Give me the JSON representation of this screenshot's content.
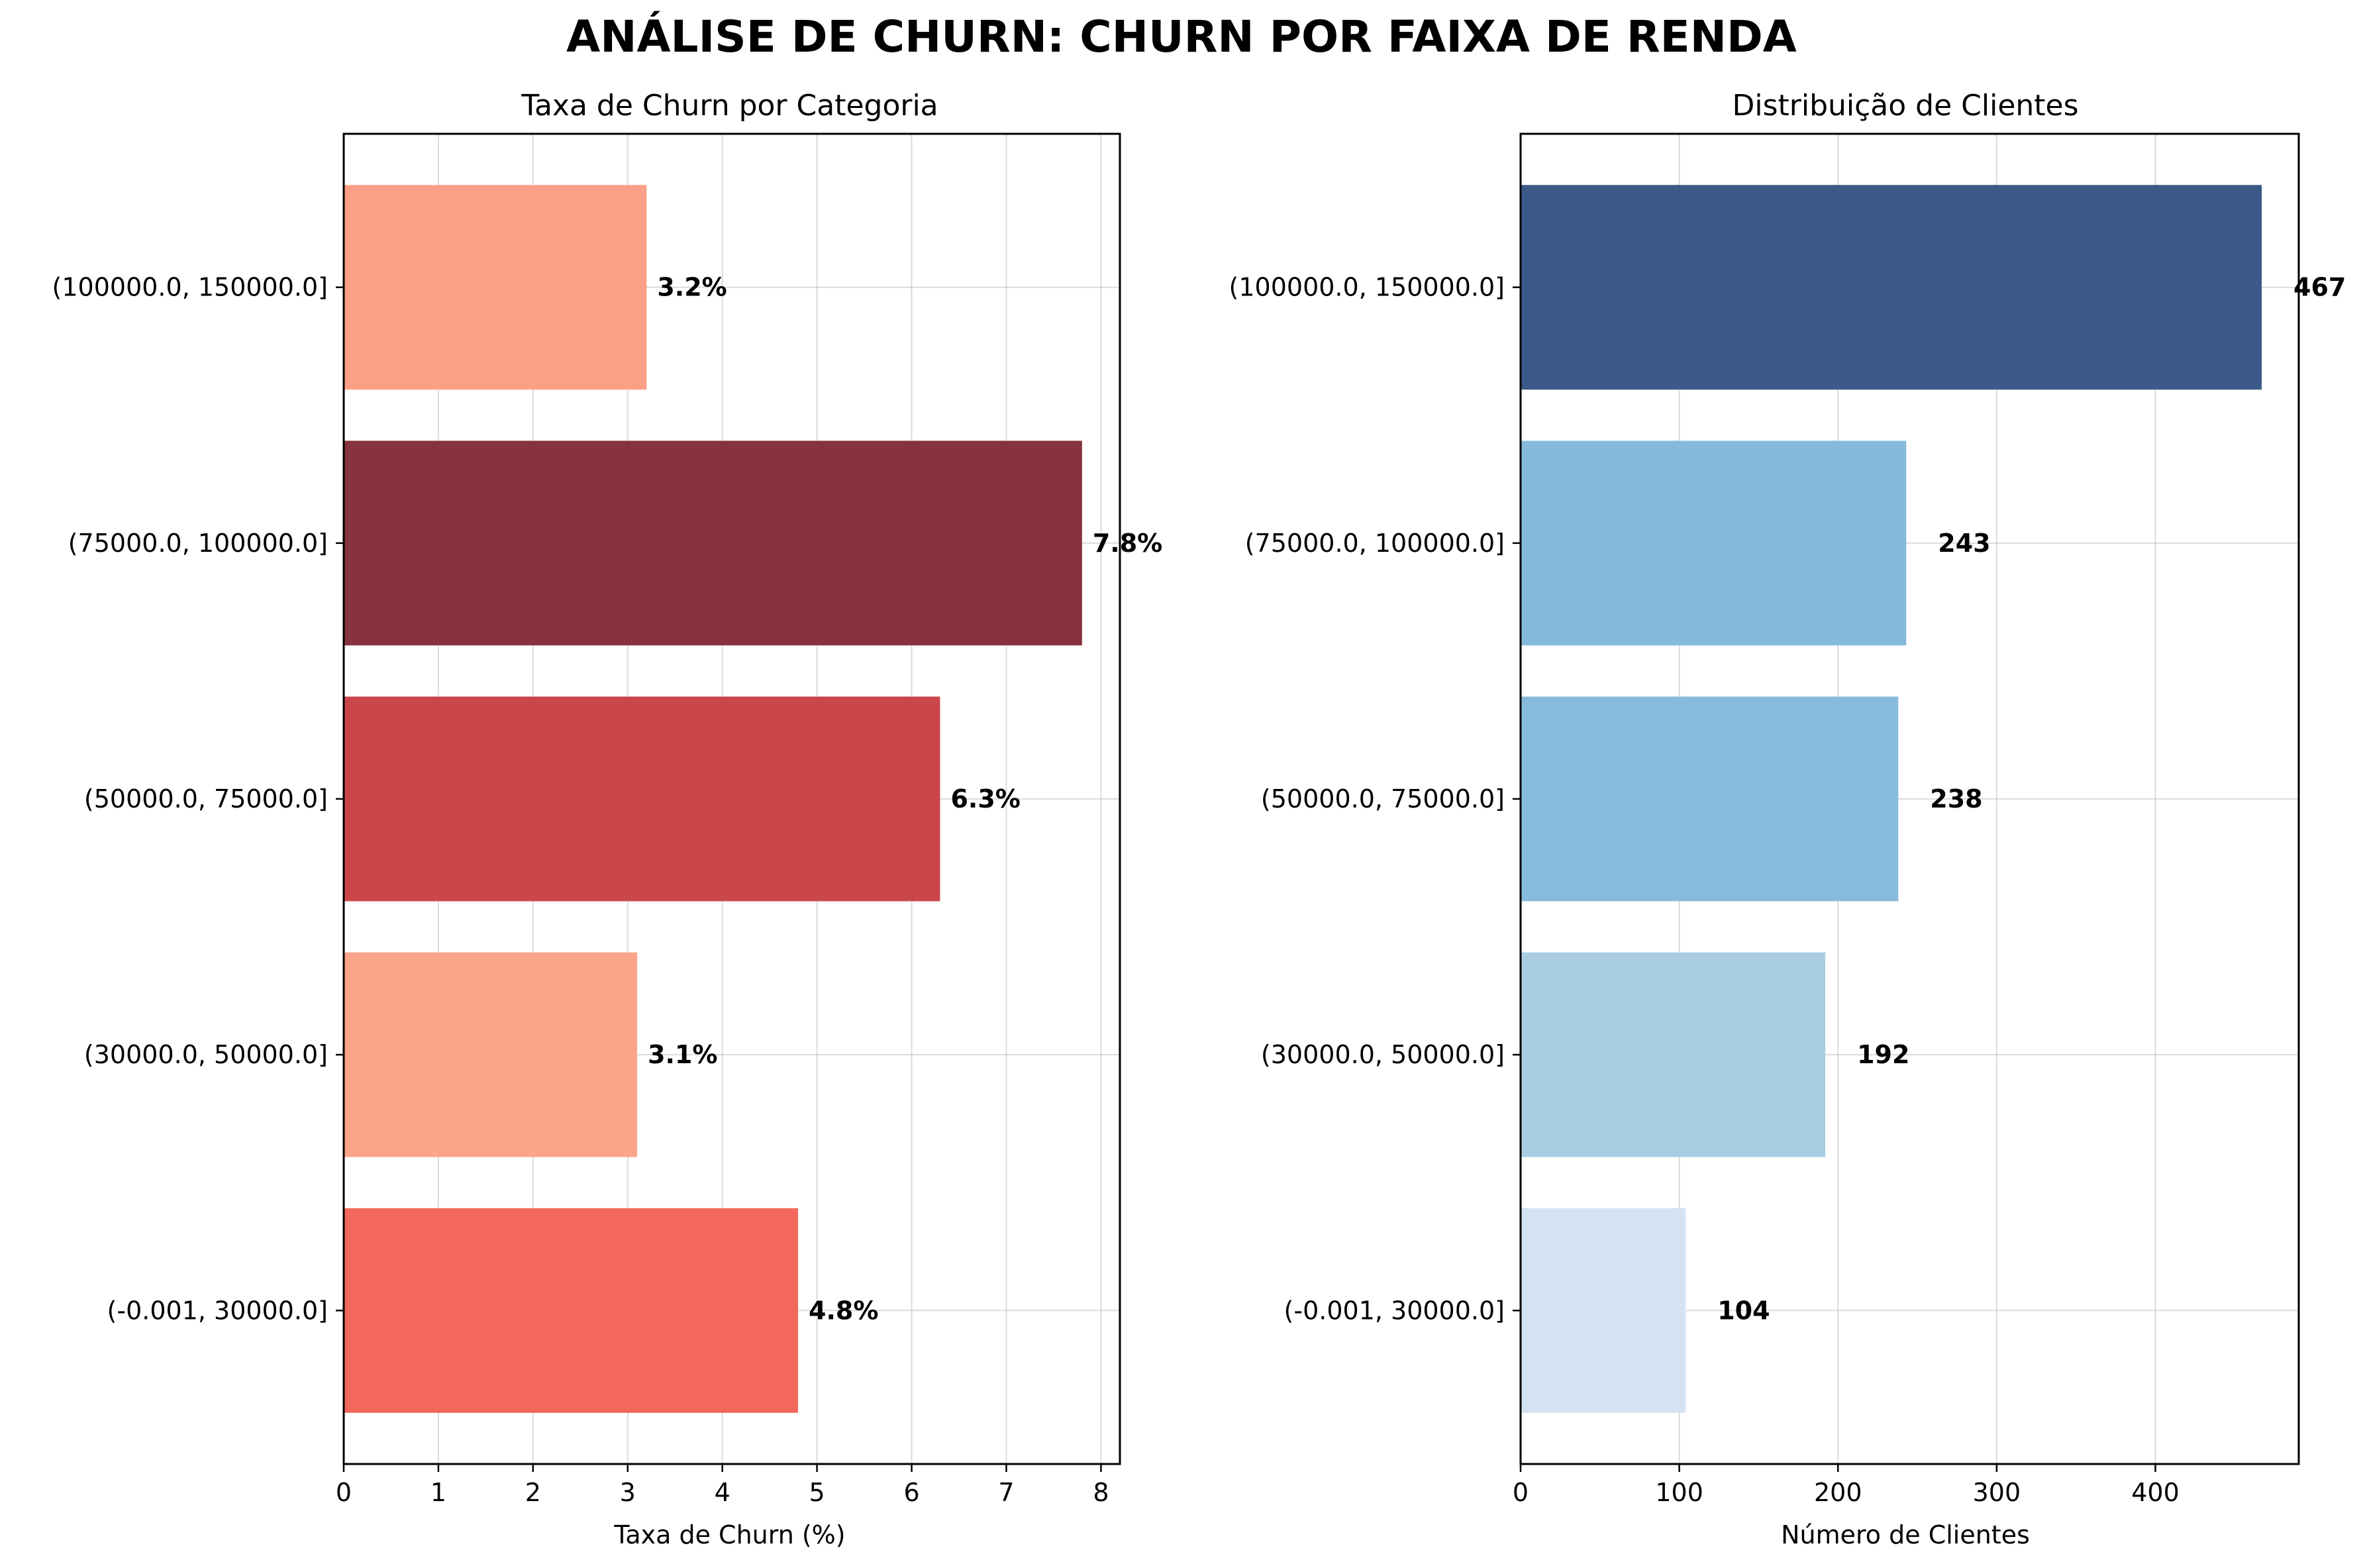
{
  "suptitle": "ANÁLISE DE CHURN: CHURN POR FAIXA DE RENDA",
  "chart_data": [
    {
      "type": "bar",
      "orientation": "horizontal",
      "title": "Taxa de Churn por Categoria",
      "xlabel": "Taxa de Churn (%)",
      "ylabel": "",
      "categories": [
        "(-0.001, 30000.0]",
        "(30000.0, 50000.0]",
        "(50000.0, 75000.0]",
        "(75000.0, 100000.0]",
        "(100000.0, 150000.0]"
      ],
      "values": [
        4.8,
        3.1,
        6.3,
        7.8,
        3.2
      ],
      "value_labels": [
        "4.8%",
        "3.1%",
        "6.3%",
        "7.8%",
        "3.2%"
      ],
      "colors": [
        "#f2695c",
        "#faa589",
        "#ca464b",
        "#86333f",
        "#fba086"
      ],
      "xlim": [
        0,
        8.2
      ],
      "xticks": [
        0,
        1,
        2,
        3,
        4,
        5,
        6,
        7,
        8
      ],
      "grid": true
    },
    {
      "type": "bar",
      "orientation": "horizontal",
      "title": "Distribuição de Clientes",
      "xlabel": "Número de Clientes",
      "ylabel": "",
      "categories": [
        "(-0.001, 30000.0]",
        "(30000.0, 50000.0]",
        "(50000.0, 75000.0]",
        "(75000.0, 100000.0]",
        "(100000.0, 150000.0]"
      ],
      "values": [
        104,
        192,
        238,
        243,
        467
      ],
      "value_labels": [
        "104",
        "192",
        "238",
        "243",
        "467"
      ],
      "colors": [
        "#d3e3f2",
        "#a8cde3",
        "#87bbdc",
        "#86badb",
        "#3b5a88"
      ],
      "xlim": [
        0,
        490.35
      ],
      "xticks": [
        0,
        100,
        200,
        300,
        400
      ],
      "grid": true
    }
  ]
}
